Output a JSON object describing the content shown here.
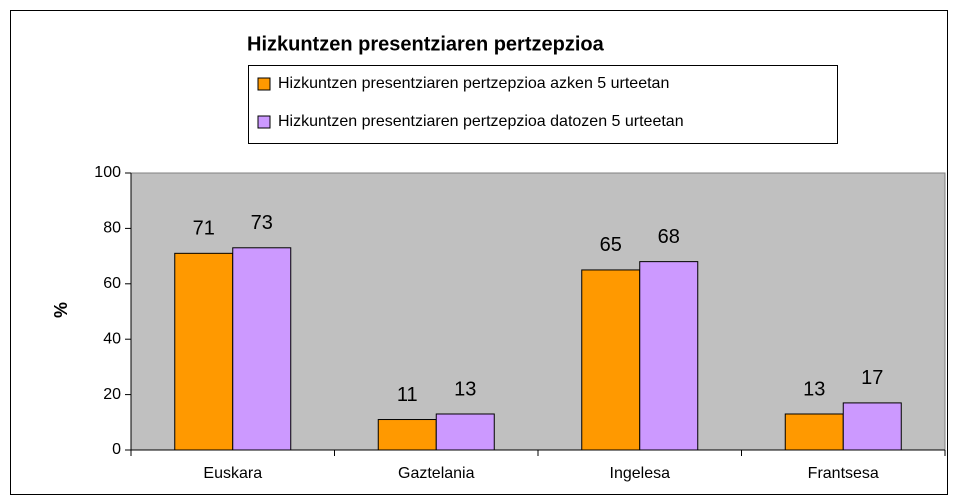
{
  "chart_data": {
    "type": "bar",
    "title": "Hizkuntzen presentziaren pertzepzioa",
    "ylabel": "%",
    "categories": [
      "Euskara",
      "Gaztelania",
      "Ingelesa",
      "Frantsesa"
    ],
    "series": [
      {
        "name": "Hizkuntzen presentziaren pertzepzioa azken 5 urteetan",
        "color": "#ff9900",
        "values": [
          71,
          11,
          65,
          13
        ]
      },
      {
        "name": "Hizkuntzen presentziaren pertzepzioa datozen 5 urteetan",
        "color": "#cc99ff",
        "values": [
          73,
          13,
          68,
          17
        ]
      }
    ],
    "ylim": [
      0,
      100
    ],
    "yticks": [
      0,
      20,
      40,
      60,
      80,
      100
    ],
    "grid": false
  }
}
